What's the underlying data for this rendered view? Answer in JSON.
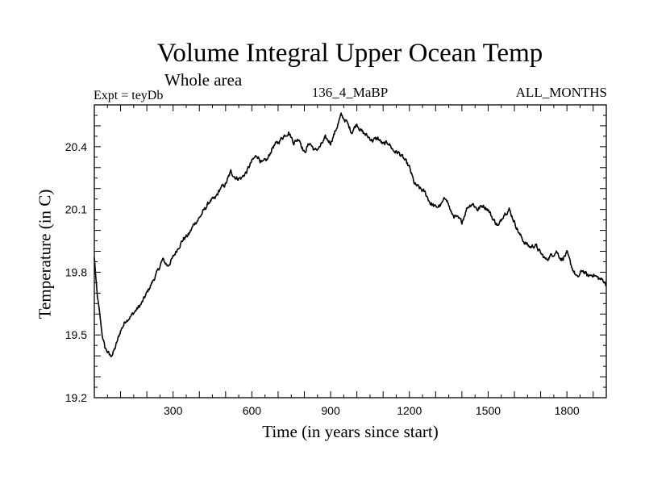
{
  "chart_data": {
    "type": "line",
    "title": "Volume Integral Upper Ocean Temp",
    "subtitle": "Whole area",
    "experiment_label": "Expt = teyDb",
    "run_label": "136_4_MaBP",
    "months_label": "ALL_MONTHS",
    "xlabel": "Time (in years since start)",
    "ylabel": "Temperature (in C)",
    "xlim": [
      0,
      1950
    ],
    "ylim": [
      19.2,
      20.6
    ],
    "xticks": [
      300,
      600,
      900,
      1200,
      1500,
      1800
    ],
    "yticks": [
      19.2,
      19.5,
      19.8,
      20.1,
      20.4
    ],
    "xtick_labels": [
      "300",
      "600",
      "900",
      "1200",
      "1500",
      "1800"
    ],
    "ytick_labels": [
      "19.2",
      "19.5",
      "19.8",
      "20.1",
      "20.4"
    ],
    "series": [
      {
        "name": "teyDb",
        "x": [
          0,
          10,
          20,
          30,
          40,
          50,
          60,
          70,
          80,
          100,
          120,
          140,
          160,
          180,
          200,
          220,
          240,
          260,
          280,
          300,
          320,
          340,
          360,
          380,
          400,
          420,
          440,
          460,
          480,
          500,
          520,
          540,
          560,
          580,
          600,
          620,
          640,
          660,
          680,
          700,
          720,
          740,
          760,
          780,
          800,
          820,
          840,
          860,
          880,
          900,
          920,
          940,
          960,
          980,
          1000,
          1020,
          1040,
          1060,
          1080,
          1100,
          1120,
          1140,
          1160,
          1180,
          1200,
          1220,
          1240,
          1260,
          1280,
          1300,
          1320,
          1340,
          1360,
          1380,
          1400,
          1420,
          1440,
          1460,
          1480,
          1500,
          1520,
          1540,
          1560,
          1580,
          1600,
          1620,
          1640,
          1660,
          1680,
          1700,
          1720,
          1740,
          1760,
          1780,
          1800,
          1820,
          1840,
          1860,
          1880,
          1900,
          1920,
          1940,
          1950
        ],
        "values": [
          19.87,
          19.7,
          19.6,
          19.5,
          19.44,
          19.42,
          19.4,
          19.41,
          19.44,
          19.52,
          19.57,
          19.59,
          19.62,
          19.65,
          19.7,
          19.75,
          19.8,
          19.86,
          19.83,
          19.87,
          19.92,
          19.96,
          19.98,
          20.03,
          20.06,
          20.1,
          20.14,
          20.15,
          20.2,
          20.22,
          20.28,
          20.25,
          20.25,
          20.28,
          20.33,
          20.36,
          20.32,
          20.34,
          20.4,
          20.42,
          20.45,
          20.47,
          20.42,
          20.44,
          20.37,
          20.42,
          20.38,
          20.4,
          20.44,
          20.42,
          20.48,
          20.55,
          20.52,
          20.47,
          20.51,
          20.47,
          20.45,
          20.43,
          20.44,
          20.41,
          20.42,
          20.38,
          20.37,
          20.34,
          20.3,
          20.22,
          20.2,
          20.18,
          20.13,
          20.11,
          20.12,
          20.16,
          20.08,
          20.06,
          20.04,
          20.11,
          20.13,
          20.1,
          20.12,
          20.1,
          20.05,
          20.02,
          20.08,
          20.1,
          20.04,
          19.98,
          19.94,
          19.92,
          19.93,
          19.89,
          19.86,
          19.88,
          19.9,
          19.86,
          19.89,
          19.82,
          19.77,
          19.81,
          19.78,
          19.79,
          19.77,
          19.76,
          19.74
        ]
      }
    ]
  }
}
